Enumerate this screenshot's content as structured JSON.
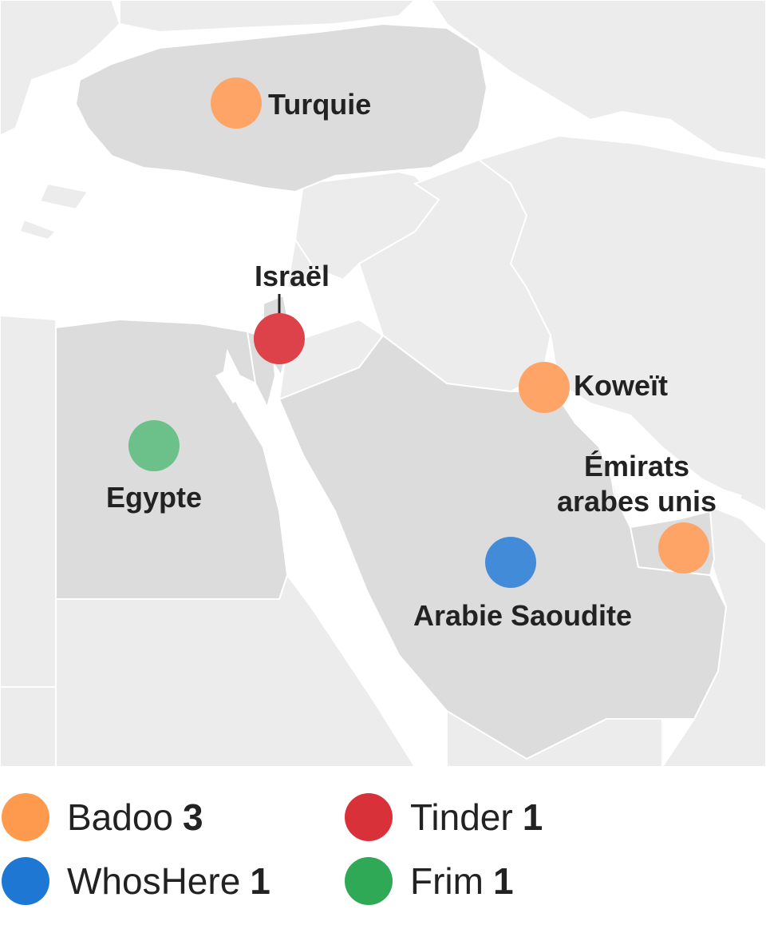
{
  "map": {
    "countries": [
      {
        "name": "Turquie",
        "app": "Badoo"
      },
      {
        "name": "Israël",
        "app": "Tinder"
      },
      {
        "name": "Koweït",
        "app": "Badoo"
      },
      {
        "name_line1": "Émirats",
        "name_line2": "arabes unis",
        "app": "Badoo"
      },
      {
        "name": "Egypte",
        "app": "Frim"
      },
      {
        "name": "Arabie Saoudite",
        "app": "WhosHere"
      }
    ]
  },
  "legend": {
    "items": [
      {
        "name": "Badoo",
        "count": "3",
        "color": "#fe9a4d"
      },
      {
        "name": "Tinder",
        "count": "1",
        "color": "#d9313a"
      },
      {
        "name": "WhosHere",
        "count": "1",
        "color": "#1f77d4"
      },
      {
        "name": "Frim",
        "count": "1",
        "color": "#2fa955"
      }
    ]
  },
  "colors": {
    "sea": "#ffffff",
    "land_other": "#ececec",
    "land_highlight": "#dcdcdc",
    "border": "#ffffff",
    "badoo_marker": "#fea466",
    "tinder_marker": "#dd424b",
    "whoshere_marker": "#428bd9",
    "frim_marker": "#6cc18a"
  }
}
